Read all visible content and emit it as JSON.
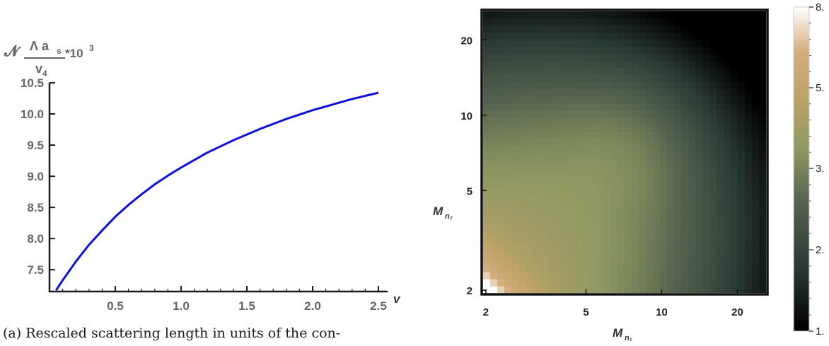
{
  "chart_data": [
    {
      "type": "line",
      "ylabel": {
        "prefix": "𝓝",
        "numerator": "Λ a",
        "numerator_sub": "s",
        "denominator": "v",
        "denominator_sub": "4",
        "suffix": "*10",
        "suffix_sup": "3"
      },
      "xlabel": "v",
      "xlim": [
        0.0,
        2.5
      ],
      "ylim": [
        7.15,
        10.5
      ],
      "xticks": [
        "0.5",
        "1.0",
        "1.5",
        "2.0",
        "2.5"
      ],
      "yticks": [
        "7.5",
        "8.0",
        "8.5",
        "9.0",
        "9.5",
        "10.0",
        "10.5"
      ],
      "series": [
        {
          "color": "#1010dd",
          "x": [
            0.05,
            0.1,
            0.2,
            0.3,
            0.4,
            0.5,
            0.6,
            0.7,
            0.8,
            0.9,
            1.0,
            1.1,
            1.2,
            1.3,
            1.4,
            1.5,
            1.6,
            1.7,
            1.8,
            1.9,
            2.0,
            2.1,
            2.2,
            2.3,
            2.4,
            2.5
          ],
          "y": [
            7.17,
            7.33,
            7.63,
            7.9,
            8.13,
            8.35,
            8.54,
            8.71,
            8.87,
            9.01,
            9.14,
            9.26,
            9.38,
            9.48,
            9.58,
            9.67,
            9.76,
            9.84,
            9.92,
            9.99,
            10.06,
            10.12,
            10.18,
            10.24,
            10.29,
            10.34
          ]
        }
      ]
    },
    {
      "type": "heatmap",
      "xlabel": "M",
      "xlabel_sub": "n₁",
      "ylabel": "M",
      "ylabel_sub": "n₂",
      "x_scale": "log",
      "y_scale": "log",
      "xlim": [
        1.95,
        26
      ],
      "ylim": [
        1.95,
        26
      ],
      "xticks": [
        2,
        5,
        10,
        20
      ],
      "yticks": [
        2,
        5,
        10,
        20
      ],
      "colorbar": {
        "ticks": [
          "1.",
          "2.",
          "3.",
          "5.",
          "8."
        ],
        "values": [
          1,
          2,
          3,
          5,
          8
        ],
        "colors": [
          "#000000",
          "#2b3b36",
          "#4f5e4f",
          "#8a9563",
          "#b9a267",
          "#c9a06a",
          "#ffffff"
        ]
      }
    }
  ],
  "caption": "(a) Rescaled scattering length in units of the con-"
}
